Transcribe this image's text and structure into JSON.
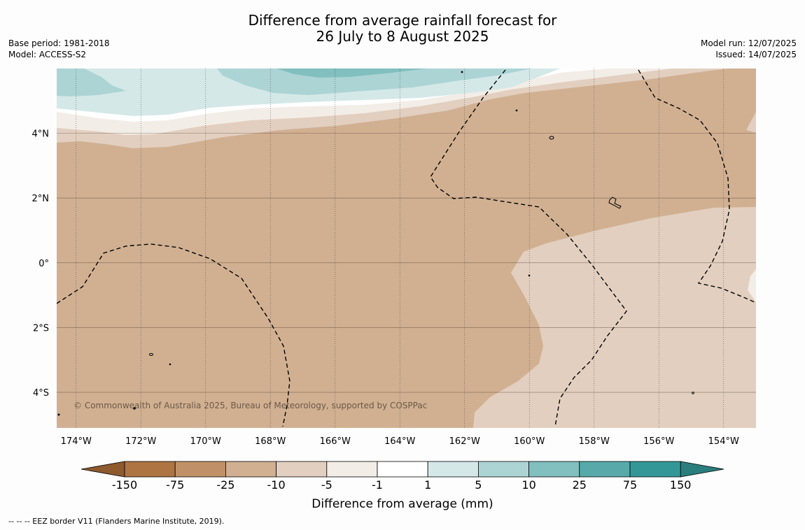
{
  "title": {
    "line1": "Difference from average rainfall forecast for",
    "line2": "26 July to 8 August 2025"
  },
  "meta_left": {
    "base_period": "Base period: 1981-2018",
    "model": "Model: ACCESS-S2"
  },
  "meta_right": {
    "model_run": "Model run: 12/07/2025",
    "issued": "Issued: 14/07/2025"
  },
  "map": {
    "lon_range": [
      -174.6,
      -153.0
    ],
    "lat_range": [
      -5.1,
      6.0
    ],
    "lon_ticks": [
      "174°W",
      "172°W",
      "170°W",
      "168°W",
      "166°W",
      "164°W",
      "162°W",
      "160°W",
      "158°W",
      "156°W",
      "154°W"
    ],
    "lat_ticks": [
      "4°N",
      "2°N",
      "0°",
      "2°S",
      "4°S"
    ],
    "copyright": "© Commonwealth of Australia 2025, Bureau of Meteorology, supported by COSPPac",
    "gridlines": true
  },
  "colorbar": {
    "label": "Difference from average (mm)",
    "ticks": [
      "-150",
      "-75",
      "-25",
      "-10",
      "-5",
      "-1",
      "1",
      "5",
      "10",
      "25",
      "75",
      "150"
    ],
    "colors": [
      "#ae7442",
      "#c09168",
      "#d1b092",
      "#e2cfbf",
      "#f3ede7",
      "#ffffff",
      "#d5e8e8",
      "#acd4d5",
      "#82bfbf",
      "#58aaaa",
      "#339797"
    ],
    "extend_low_color": "#8e5a2e",
    "extend_high_color": "#2a7e7e"
  },
  "footer": "--  --  -- EEZ border V11 (Flanders Marine Institute, 2019).",
  "colors": {
    "background": "#fdfdfd",
    "dry_main": "#d1b092",
    "dry_light": "#e2cfbf",
    "near_average": "#f3ede7",
    "wet_light": "#d5e8e8",
    "wet_mid": "#acd4d5",
    "wet_strong": "#82bfbf"
  }
}
